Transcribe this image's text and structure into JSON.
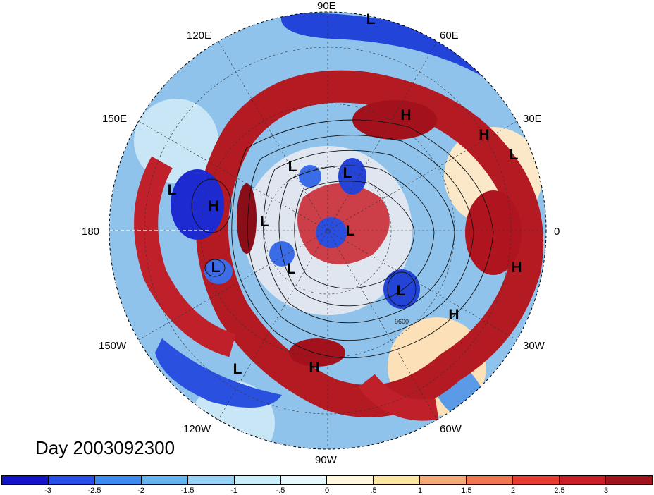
{
  "map": {
    "lon_labels": {
      "lon_90e": "90E",
      "lon_60e": "60E",
      "lon_30e": "30E",
      "lon_0": "0",
      "lon_30w": "30W",
      "lon_60w": "60W",
      "lon_90w": "90W",
      "lon_120w": "120W",
      "lon_150w": "150W",
      "lon_180": "180",
      "lon_150e": "150E",
      "lon_120e": "120E"
    },
    "pressure_centers": {
      "c1": "L",
      "c2": "H",
      "c3": "H",
      "c4": "L",
      "c5": "L",
      "c6": "H",
      "c7": "L",
      "c8": "L",
      "c9": "L",
      "c10": "L",
      "c11": "L",
      "c12": "H",
      "c13": "L",
      "c14": "H",
      "c15": "H",
      "c16": "L",
      "c17": "H",
      "c18": "L"
    },
    "contour_label": "9600",
    "colors": {
      "warm": "#b0141e",
      "cool": "#1e28c8",
      "neutral": "#fff8e6"
    }
  },
  "title": "Day 2003092300",
  "colorbar": {
    "colors": [
      "#1414c8",
      "#2850e6",
      "#3c8cf0",
      "#64b4f0",
      "#96d2f5",
      "#c8eefa",
      "#e6f8fa",
      "#fff8dc",
      "#fae6a0",
      "#f5aa78",
      "#f07850",
      "#e63c32",
      "#c81e28",
      "#a0141e"
    ],
    "ticks": [
      "-3",
      "-2.5",
      "-2",
      "-1.5",
      "-1",
      "-.5",
      "0",
      ".5",
      "1",
      "1.5",
      "2",
      "2.5",
      "3"
    ]
  }
}
